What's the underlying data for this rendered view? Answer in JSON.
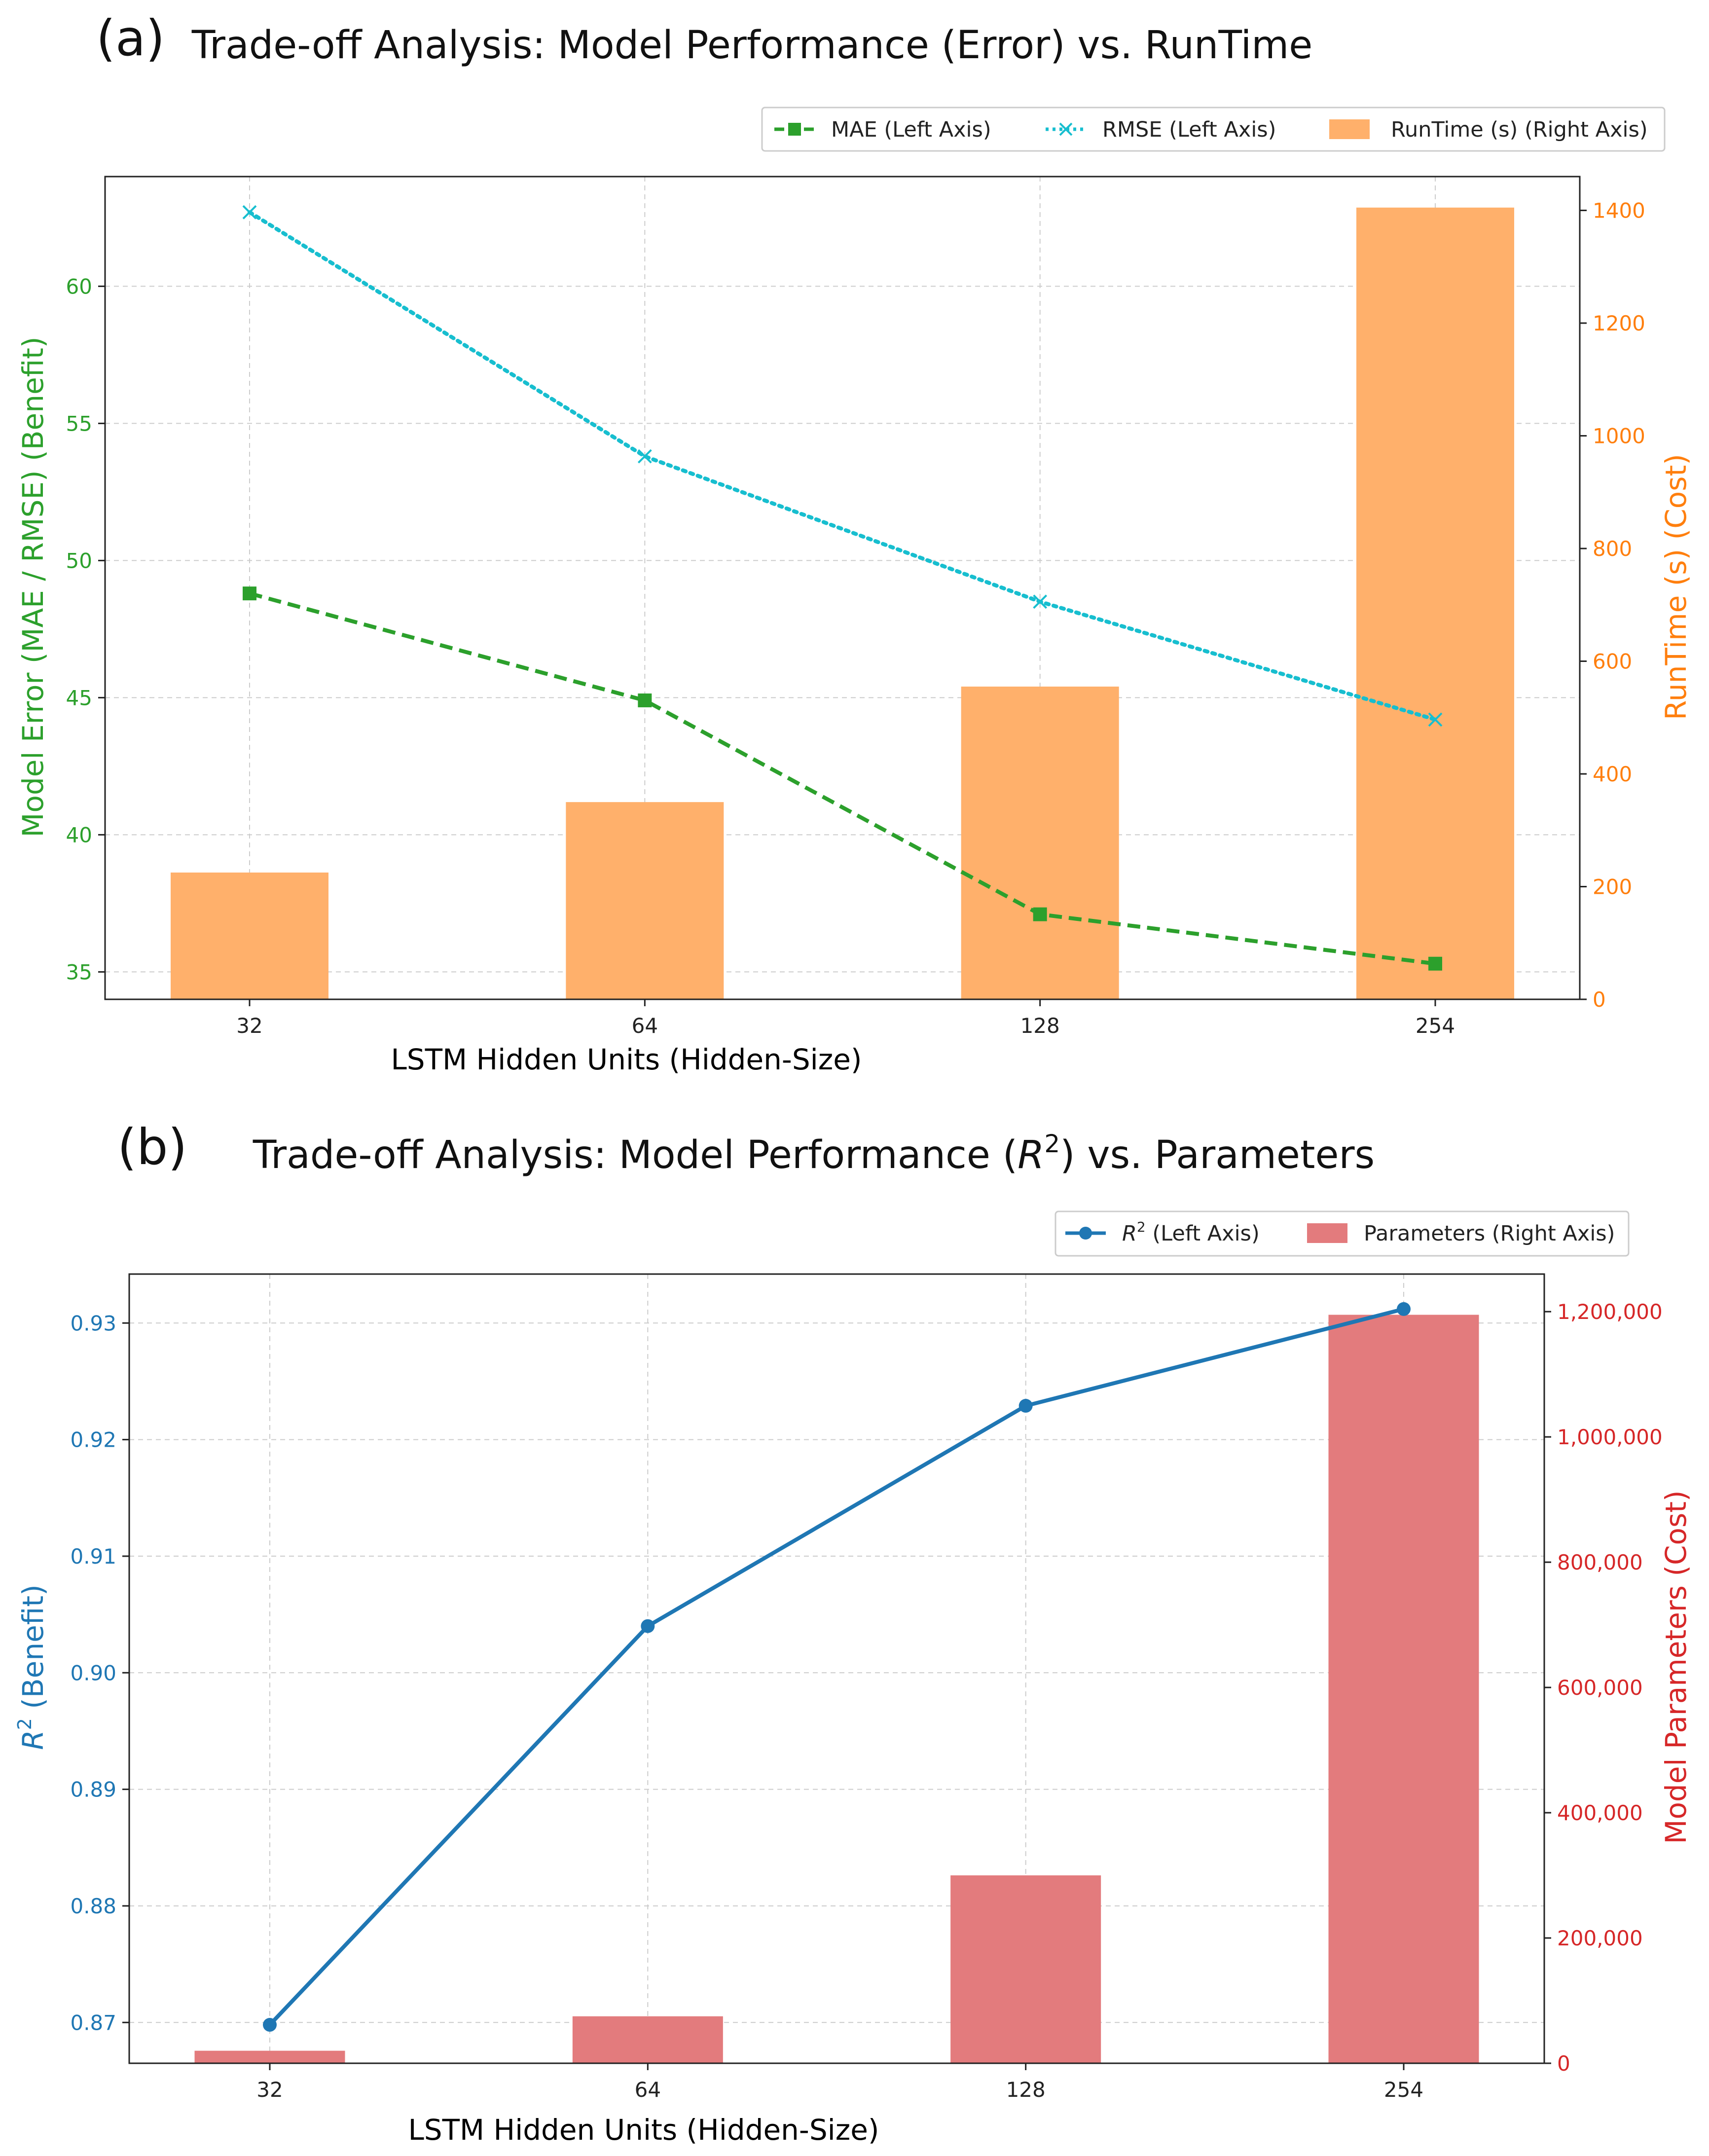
{
  "chart_data": [
    {
      "panel_label": "(a)",
      "type": "bar+line",
      "title": "Trade-off Analysis: Model Performance (Error) vs. RunTime",
      "xlabel": "LSTM Hidden Units (Hidden-Size)",
      "ylabel_left": "Model Error (MAE / RMSE) (Benefit)",
      "ylabel_right": "RunTime (s) (Cost)",
      "categories": [
        "32",
        "64",
        "128",
        "254"
      ],
      "ylim_left": [
        34,
        64
      ],
      "yticks_left": [
        35,
        40,
        45,
        50,
        55,
        60
      ],
      "ylim_right": [
        0,
        1460
      ],
      "yticks_right": [
        0,
        200,
        400,
        600,
        800,
        1000,
        1200,
        1400
      ],
      "left_color": "#2ca02c",
      "right_color": "#ff7f0e",
      "series": [
        {
          "name": "MAE (Left Axis)",
          "kind": "line",
          "axis": "left",
          "color": "#2ca02c",
          "marker": "square",
          "dash": "dashed",
          "values": [
            48.8,
            44.9,
            37.1,
            35.3
          ]
        },
        {
          "name": "RMSE (Left Axis)",
          "kind": "line",
          "axis": "left",
          "color": "#17becf",
          "marker": "x",
          "dash": "dotted",
          "values": [
            62.7,
            53.8,
            48.5,
            44.2
          ]
        },
        {
          "name": "RunTime (s) (Right Axis)",
          "kind": "bar",
          "axis": "right",
          "color": "#ffb06b",
          "values": [
            225,
            350,
            555,
            1405
          ]
        }
      ],
      "legend": "top-right",
      "grid": true
    },
    {
      "panel_label": "(b)",
      "type": "bar+line",
      "title_pre": "Trade-off Analysis: Model Performance (",
      "title_math": "R",
      "title_sup": "2",
      "title_post": ") vs. Parameters",
      "xlabel": "LSTM Hidden Units (Hidden-Size)",
      "ylabel_left_math": "R",
      "ylabel_left_sup": "2",
      "ylabel_left_rest": " (Benefit)",
      "ylabel_right": "Model Parameters (Cost)",
      "categories": [
        "32",
        "64",
        "128",
        "254"
      ],
      "ylim_left": [
        0.8665,
        0.9342
      ],
      "yticks_left": [
        0.87,
        0.88,
        0.89,
        0.9,
        0.91,
        0.92,
        0.93
      ],
      "ytick_labels_left": [
        "0.87",
        "0.88",
        "0.89",
        "0.90",
        "0.91",
        "0.92",
        "0.93"
      ],
      "ylim_right": [
        0,
        1260000
      ],
      "yticks_right": [
        0,
        200000,
        400000,
        600000,
        800000,
        1000000,
        1200000
      ],
      "ytick_labels_right": [
        "0",
        "200,000",
        "400,000",
        "600,000",
        "800,000",
        "1,000,000",
        "1,200,000"
      ],
      "left_color": "#1f77b4",
      "right_color": "#d62728",
      "series": [
        {
          "name_math": "R",
          "name_sup": "2",
          "name_rest": " (Left Axis)",
          "kind": "line",
          "axis": "left",
          "color": "#1f77b4",
          "marker": "circle",
          "dash": "solid",
          "values": [
            0.8698,
            0.904,
            0.9229,
            0.9312
          ]
        },
        {
          "name": "Parameters (Right Axis)",
          "kind": "bar",
          "axis": "right",
          "color": "#e37b7d",
          "values": [
            20000,
            75000,
            300000,
            1195000
          ]
        }
      ],
      "legend": "top-right",
      "grid": true
    }
  ]
}
